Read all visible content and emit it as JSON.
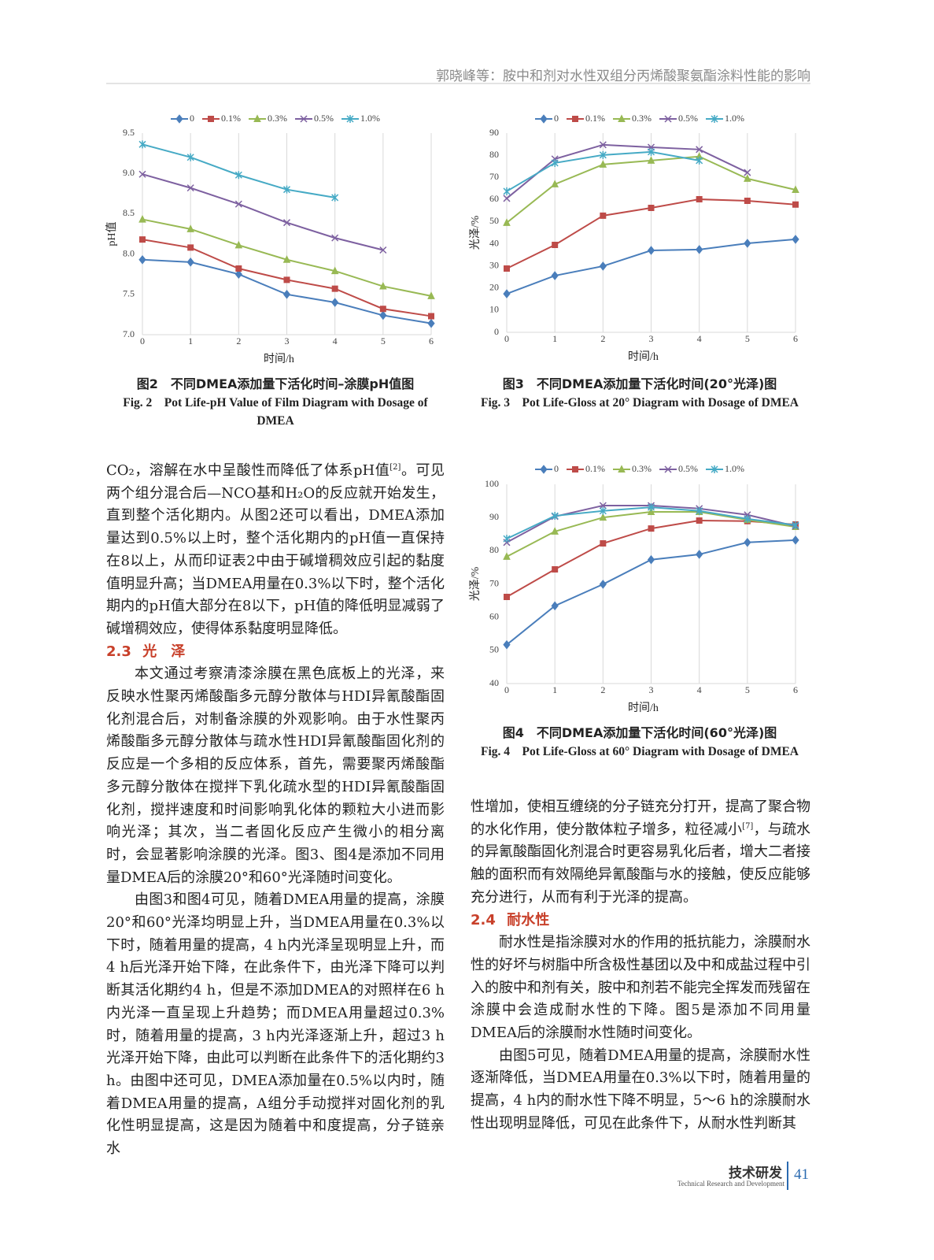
{
  "header": {
    "running_title": "郭晓峰等：胺中和剂对水性双组分丙烯酸聚氨酯涂料性能的影响"
  },
  "chart_data": [
    {
      "type": "line",
      "grid": "x",
      "x": [
        0,
        1,
        2,
        3,
        4,
        5,
        6
      ],
      "xlim": [
        0,
        6
      ],
      "xticks": [
        0,
        1,
        2,
        3,
        4,
        5,
        6
      ],
      "ylim": [
        7,
        9.5
      ],
      "yticks": [
        {
          "value": 7,
          "label": "7.0"
        },
        7.5,
        {
          "value": 8,
          "label": "8.0"
        },
        8.5,
        {
          "value": 9,
          "label": "9.0"
        },
        9.5
      ],
      "x_label": "时间/h",
      "y_label": "pH值",
      "series": [
        {
          "name": "0",
          "color": "#4a7ebb",
          "values": [
            7.93,
            7.9,
            7.75,
            7.5,
            7.4,
            7.24,
            7.14
          ]
        },
        {
          "name": "0.1%",
          "color": "#be4b48",
          "values": [
            8.18,
            8.08,
            7.82,
            7.68,
            7.57,
            7.32,
            7.23
          ]
        },
        {
          "name": "0.3%",
          "color": "#98b954",
          "values": [
            8.43,
            8.31,
            8.11,
            7.93,
            7.79,
            7.6,
            7.48
          ]
        },
        {
          "name": "0.5%",
          "color": "#7d60a0",
          "values": [
            8.99,
            8.82,
            8.62,
            8.39,
            8.2,
            8.05,
            null
          ]
        },
        {
          "name": "1.0%",
          "color": "#46aac5",
          "values": [
            9.36,
            9.2,
            8.98,
            8.8,
            8.7,
            null,
            null
          ]
        }
      ],
      "caption": "图2　不同DMEA添加量下活化时间–涂膜pH值图",
      "caption_en": "Fig. 2　Pot Life-pH Value of Film Diagram with Dosage of DMEA"
    },
    {
      "type": "line",
      "grid": "x",
      "x": [
        0,
        1,
        2,
        3,
        4,
        5,
        6
      ],
      "xlim": [
        0,
        6
      ],
      "xticks": [
        0,
        1,
        2,
        3,
        4,
        5,
        6
      ],
      "ylim": [
        0,
        90
      ],
      "yticks": [
        0,
        10,
        20,
        30,
        40,
        50,
        60,
        70,
        80,
        90
      ],
      "x_label": "时间/h",
      "y_label": "光泽/%",
      "series": [
        {
          "name": "0",
          "color": "#4a7ebb",
          "values": [
            17.4,
            25.6,
            29.9,
            37,
            37.4,
            40.2,
            42
          ]
        },
        {
          "name": "0.1%",
          "color": "#be4b48",
          "values": [
            28.8,
            39.5,
            52.7,
            56.2,
            60.1,
            59.4,
            57.7
          ]
        },
        {
          "name": "0.3%",
          "color": "#98b954",
          "values": [
            49.5,
            66.9,
            75.8,
            77.6,
            79.4,
            69.4,
            64.4
          ]
        },
        {
          "name": "0.5%",
          "color": "#7d60a0",
          "values": [
            60.5,
            78.3,
            84.7,
            83.6,
            82.6,
            72.2,
            null
          ]
        },
        {
          "name": "1.0%",
          "color": "#46aac5",
          "values": [
            63.7,
            76.5,
            80.1,
            81.5,
            77.6,
            null,
            null
          ]
        }
      ],
      "caption": "图3　不同DMEA添加量下活化时间(20°光泽)图",
      "caption_en": "Fig. 3　Pot Life-Gloss at 20° Diagram with Dosage of DMEA"
    },
    {
      "type": "line",
      "grid": "x",
      "x": [
        0,
        1,
        2,
        3,
        4,
        5,
        6
      ],
      "xlim": [
        0,
        6
      ],
      "xticks": [
        0,
        1,
        2,
        3,
        4,
        5,
        6
      ],
      "ylim": [
        40,
        100
      ],
      "yticks": [
        40,
        50,
        60,
        70,
        80,
        90,
        100
      ],
      "x_label": "时间/h",
      "y_label": "光泽/%",
      "series": [
        {
          "name": "0",
          "color": "#4a7ebb",
          "values": [
            51.7,
            63.4,
            69.9,
            77.3,
            78.9,
            82.5,
            83.2
          ]
        },
        {
          "name": "0.1%",
          "color": "#be4b48",
          "values": [
            66.1,
            74.4,
            82.2,
            86.7,
            89.1,
            88.9,
            87.9
          ]
        },
        {
          "name": "0.3%",
          "color": "#98b954",
          "values": [
            78.2,
            85.8,
            90,
            91.7,
            91.7,
            89.3,
            87.2
          ]
        },
        {
          "name": "0.5%",
          "color": "#7d60a0",
          "values": [
            82.5,
            90.3,
            93.6,
            93.6,
            92.7,
            90.8,
            87.4
          ]
        },
        {
          "name": "1.0%",
          "color": "#46aac5",
          "values": [
            83.6,
            90.5,
            92,
            93.1,
            92,
            89.6,
            87.7
          ]
        }
      ],
      "caption": "图4　不同DMEA添加量下活化时间(60°光泽)图",
      "caption_en": "Fig. 4　Pot Life-Gloss at 60° Diagram with Dosage of DMEA"
    }
  ],
  "left_column": [
    {
      "runs": [
        {
          "text": "CO₂，溶解在水中呈酸性而降低了体系pH值"
        },
        {
          "sup": "[2]"
        },
        {
          "text": "。可见两个组分混合后—NCO基和H₂O的反应就开始发生，直到整个活化期内。从图2还可以看出，DMEA添加量达到0.5%以上时，整个活化期内的pH值一直保持在8以上，从而印证表2中由于碱增稠效应引起的黏度值明显升高；当DMEA用量在0.3%以下时，整个活化期内的pH值大部分在8以下，pH值的降低明显减弱了碱增稠效应，使得体系黏度明显降低。"
        }
      ]
    },
    {
      "heading_number": "2.3",
      "heading_title": "光　泽"
    },
    {
      "runs": [
        {
          "text": "本文通过考察清漆涂膜在黑色底板上的光泽，来反映水性聚丙烯酸酯多元醇分散体与HDI异氰酸酯固化剂混合后，对制备涂膜的外观影响。由于水性聚丙烯酸酯多元醇分散体与疏水性HDI异氰酸酯固化剂的反应是一个多相的反应体系，首先，需要聚丙烯酸酯多元醇分散体在搅拌下乳化疏水型的HDI异氰酸酯固化剂，搅拌速度和时间影响乳化体的颗粒大小进而影响光泽；其次，当二者固化反应产生微小的相分离时，会显著影响涂膜的光泽。图3、图4是添加不同用量DMEA后的涂膜20°和60°光泽随时间变化。"
        }
      ]
    },
    {
      "runs": [
        {
          "text": "由图3和图4可见，随着DMEA用量的提高，涂膜20°和60°光泽均明显上升，当DMEA用量在0.3%以下时，随着用量的提高，4 h内光泽呈现明显上升，而4 h后光泽开始下降，在此条件下，由光泽下降可以判断其活化期约4 h，但是不添加DMEA的对照样在6 h内光泽一直呈现上升趋势；而DMEA用量超过0.3%时，随着用量的提高，3 h内光泽逐渐上升，超过3 h光泽开始下降，由此可以判断在此条件下的活化期约3 h。由图中还可见，DMEA添加量在0.5%以内时，随着DMEA用量的提高，A组分手动搅拌对固化剂的乳化性明显提高，这是因为随着中和度提高，分子链亲水"
        }
      ]
    }
  ],
  "right_column": [
    {
      "runs": [
        {
          "text": "性增加，使相互缠绕的分子链充分打开，提高了聚合物的水化作用，使分散体粒子增多，粒径减小"
        },
        {
          "sup": "[7]"
        },
        {
          "text": "，与疏水的异氰酸酯固化剂混合时更容易乳化后者，增大二者接触的面积而有效隔绝异氰酸酯与水的接触，使反应能够充分进行，从而有利于光泽的提高。"
        }
      ]
    },
    {
      "heading_number": "2.4",
      "heading_title": "耐水性"
    },
    {
      "runs": [
        {
          "text": "耐水性是指涂膜对水的作用的抵抗能力，涂膜耐水性的好坏与树脂中所含极性基团以及中和成盐过程中引入的胺中和剂有关，胺中和剂若不能完全挥发而残留在涂膜中会造成耐水性的下降。图5是添加不同用量DMEA后的涂膜耐水性随时间变化。"
        }
      ]
    },
    {
      "runs": [
        {
          "text": "由图5可见，随着DMEA用量的提高，涂膜耐水性逐渐降低，当DMEA用量在0.3%以下时，随着用量的提高，4 h内的耐水性下降不明显，5～6 h的涂膜耐水性出现明显降低，可见在此条件下，从耐水性判断其"
        }
      ]
    }
  ],
  "footer": {
    "section": "技术研发",
    "section_en": "Technical Research and Development",
    "page_number": 41
  }
}
